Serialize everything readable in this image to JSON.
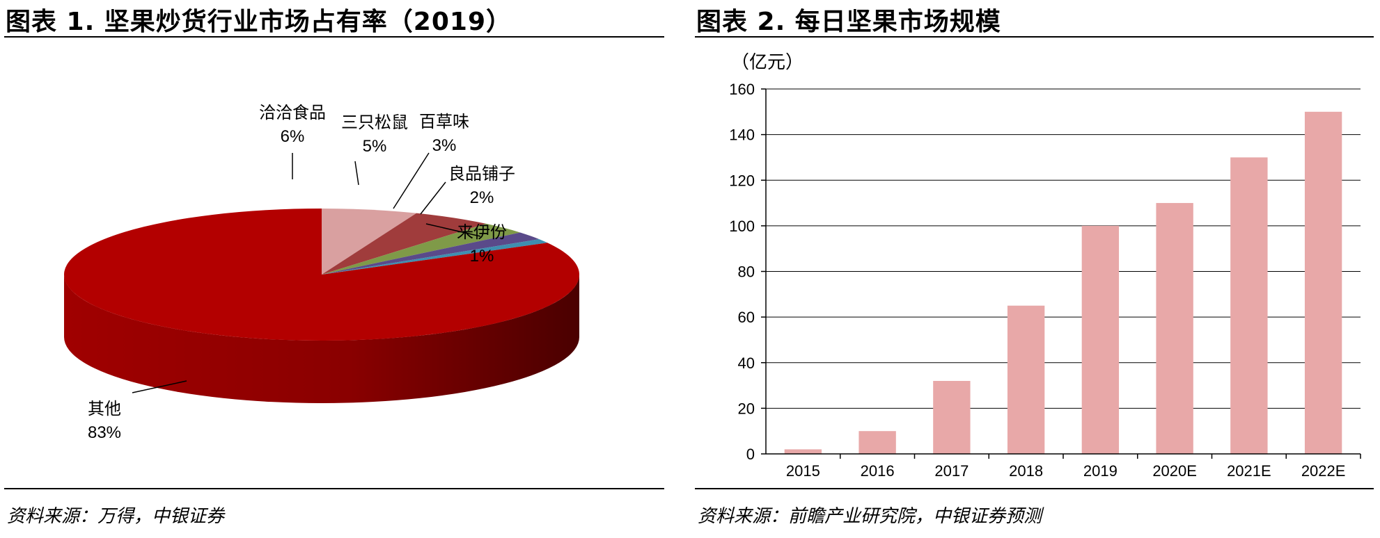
{
  "colors": {
    "pie_main": "#b30000",
    "pie_main_dark": "#7a0000",
    "bar": "#e8a8a8"
  },
  "chart_data": [
    {
      "type": "pie",
      "title": "图表 1. 坚果炒货行业市场占有率（2019）",
      "source": "资料来源：万得，中银证券",
      "slices": [
        {
          "label": "洽洽食品",
          "value": 6,
          "value_label": "6%",
          "color": "#d9a0a0"
        },
        {
          "label": "三只松鼠",
          "value": 5,
          "value_label": "5%",
          "color": "#a03c3c"
        },
        {
          "label": "百草味",
          "value": 3,
          "value_label": "3%",
          "color": "#7f9a48"
        },
        {
          "label": "良品铺子",
          "value": 2,
          "value_label": "2%",
          "color": "#5a4a8a"
        },
        {
          "label": "来伊份",
          "value": 1,
          "value_label": "1%",
          "color": "#3e8fb0"
        },
        {
          "label": "其他",
          "value": 83,
          "value_label": "83%",
          "color": "#b30000"
        }
      ]
    },
    {
      "type": "bar",
      "title": "图表 2. 每日坚果市场规模",
      "source": "资料来源：前瞻产业研究院，中银证券预测",
      "ylabel": "（亿元）",
      "categories": [
        "2015",
        "2016",
        "2017",
        "2018",
        "2019",
        "2020E",
        "2021E",
        "2022E"
      ],
      "values": [
        2,
        10,
        32,
        65,
        100,
        110,
        130,
        150
      ],
      "ylim": [
        0,
        160
      ],
      "yticks": [
        0,
        20,
        40,
        60,
        80,
        100,
        120,
        140,
        160
      ],
      "grid": true
    }
  ]
}
